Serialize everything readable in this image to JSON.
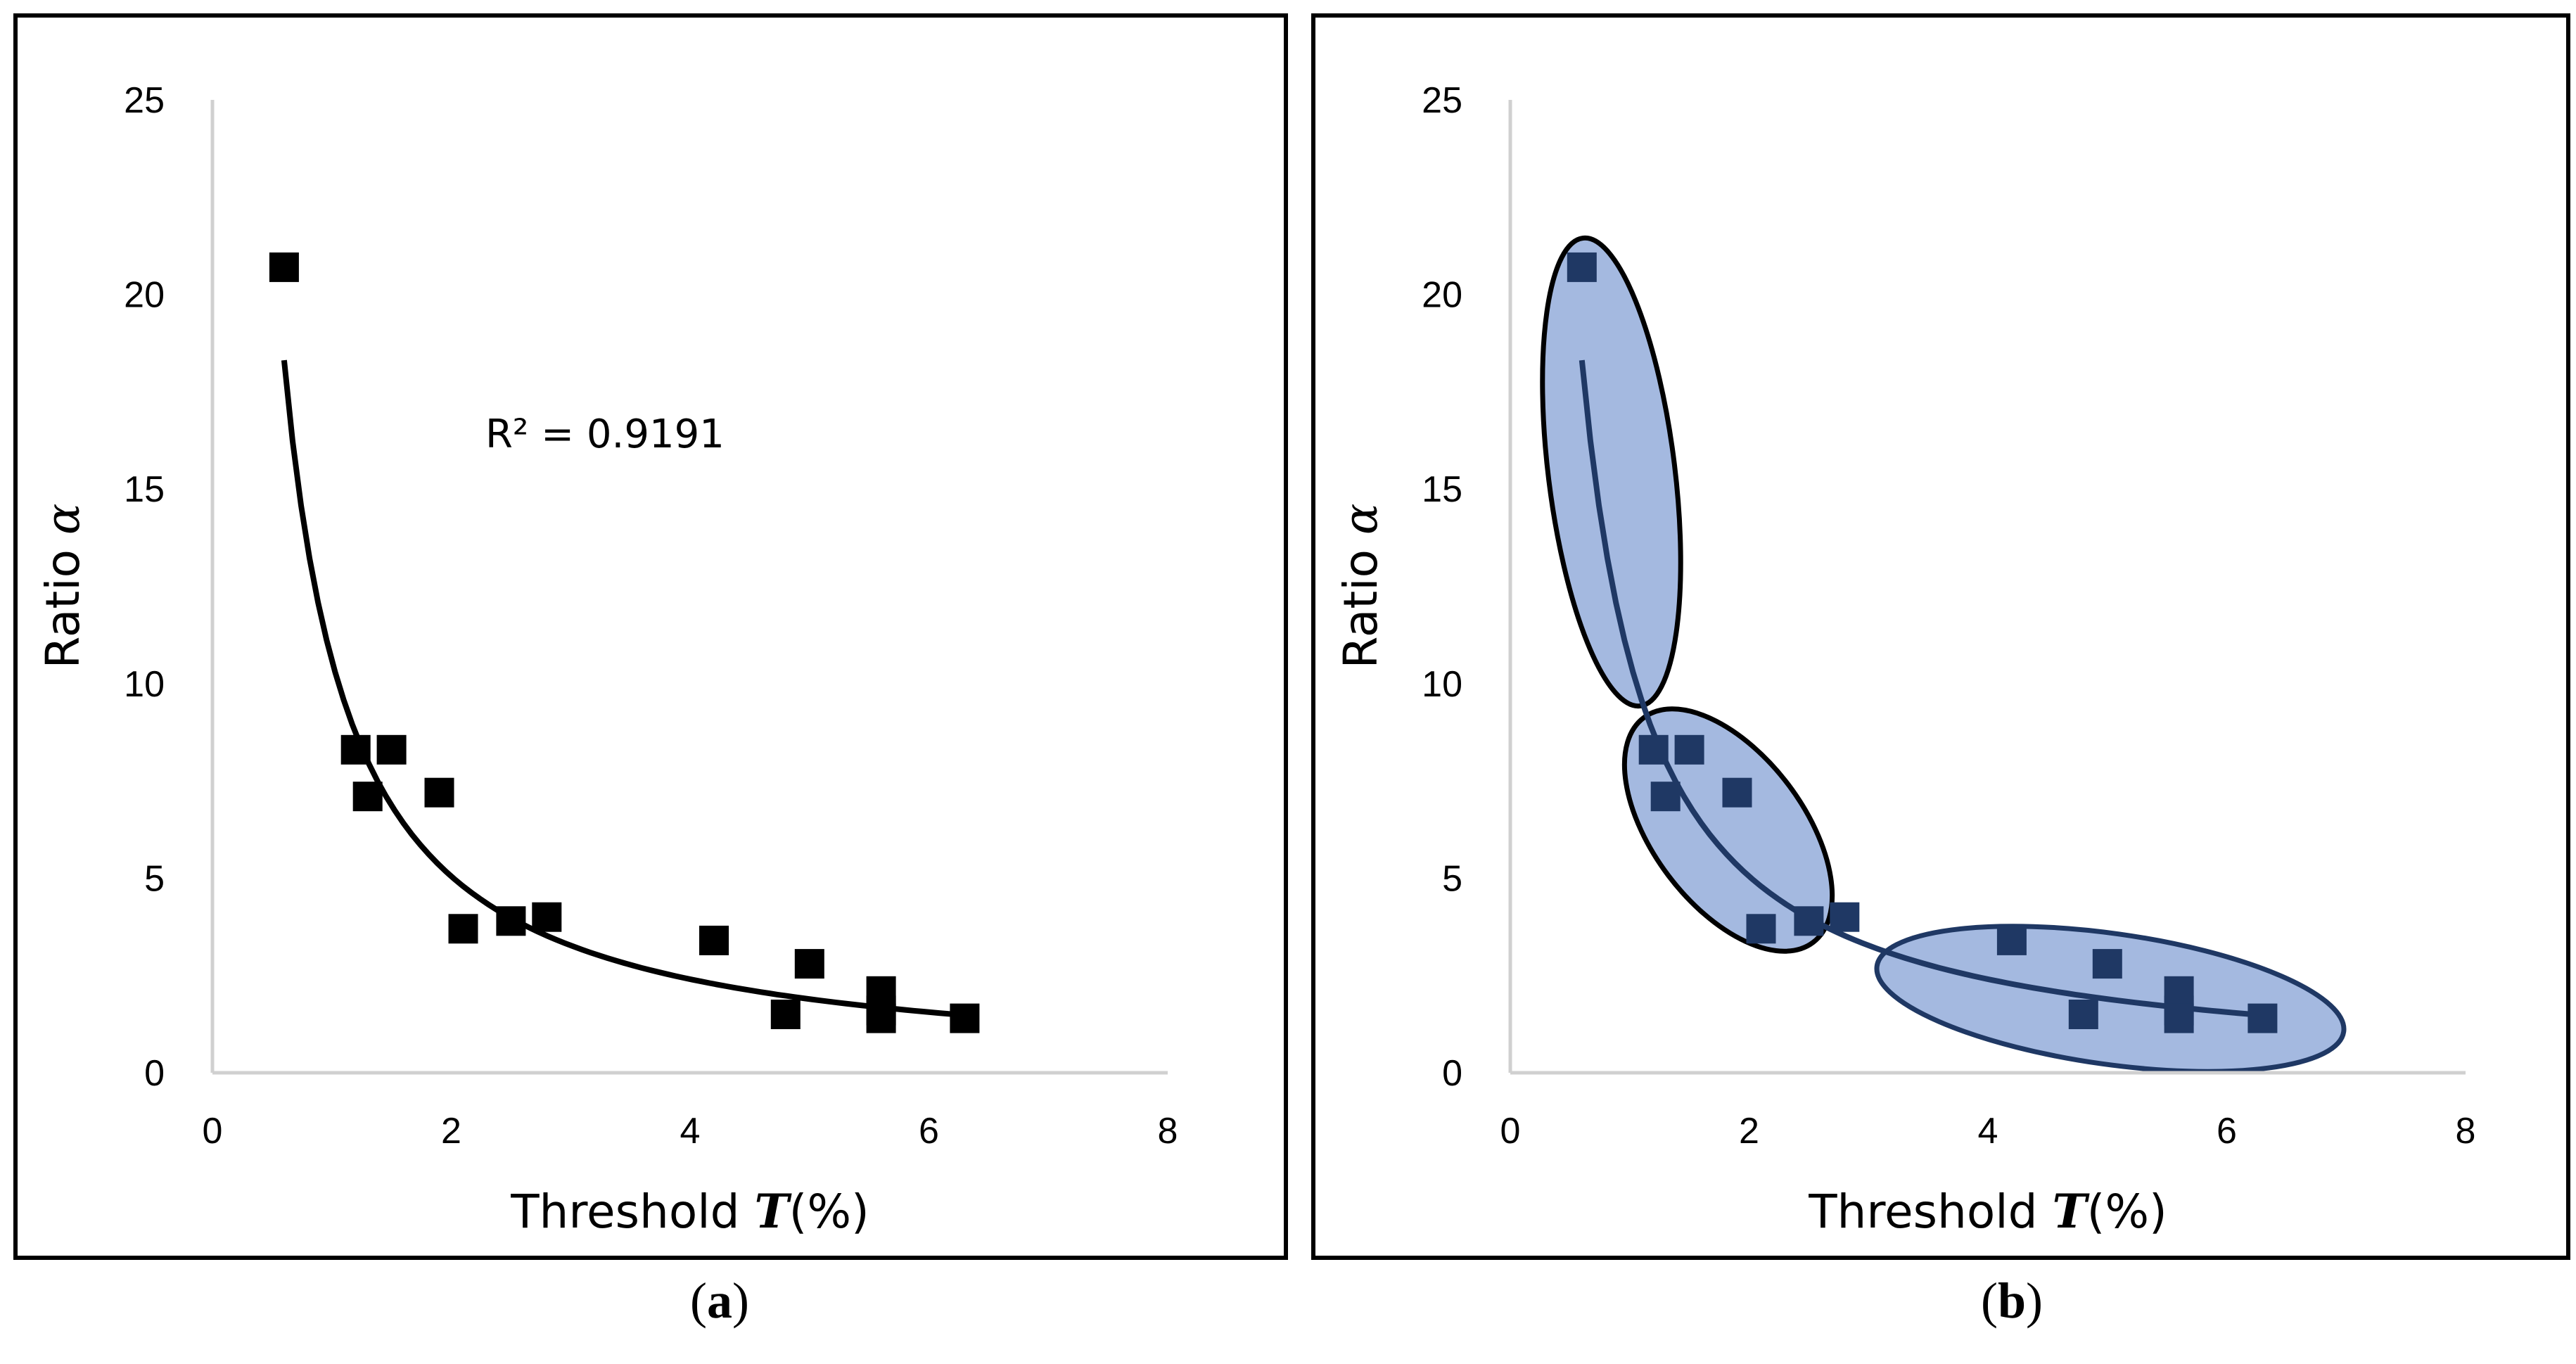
{
  "chart_data": [
    {
      "type": "scatter",
      "panel_label": "a",
      "xlabel": "Threshold T(%)",
      "ylabel": "Ratio α",
      "xlim": [
        0,
        8
      ],
      "ylim": [
        0,
        25
      ],
      "xticks": [
        0,
        2,
        4,
        6,
        8
      ],
      "yticks": [
        0,
        5,
        10,
        15,
        20,
        25
      ],
      "series": [
        {
          "name": "data",
          "x": [
            0.6,
            1.2,
            1.3,
            1.5,
            1.9,
            2.1,
            2.5,
            2.8,
            4.2,
            4.8,
            5.0,
            5.6,
            5.6,
            5.6,
            6.3
          ],
          "y": [
            20.7,
            8.3,
            7.1,
            8.3,
            7.2,
            3.7,
            3.9,
            4.0,
            3.4,
            1.5,
            2.8,
            2.1,
            1.6,
            1.4,
            1.4
          ]
        }
      ],
      "trendline": {
        "type": "power",
        "a": 10.6,
        "b": -1.07,
        "x_range": [
          0.6,
          6.3
        ]
      },
      "annotation": "R² = 0.9191",
      "marker_color": "#000000"
    },
    {
      "type": "scatter",
      "panel_label": "b",
      "xlabel": "Threshold T(%)",
      "ylabel": "Ratio α",
      "xlim": [
        0,
        8
      ],
      "ylim": [
        0,
        25
      ],
      "xticks": [
        0,
        2,
        4,
        6,
        8
      ],
      "yticks": [
        0,
        5,
        10,
        15,
        20,
        25
      ],
      "series": [
        {
          "name": "data",
          "x": [
            0.6,
            1.2,
            1.3,
            1.5,
            1.9,
            2.1,
            2.5,
            2.8,
            4.2,
            4.8,
            5.0,
            5.6,
            5.6,
            5.6,
            6.3
          ],
          "y": [
            20.7,
            8.3,
            7.1,
            8.3,
            7.2,
            3.7,
            3.9,
            4.0,
            3.4,
            1.5,
            2.8,
            2.1,
            1.6,
            1.4,
            1.4
          ]
        }
      ],
      "trendline": {
        "type": "power",
        "a": 10.6,
        "b": -1.07,
        "x_range": [
          0.6,
          6.3
        ]
      },
      "clusters": [
        {
          "name": "cluster-1",
          "center": [
            0.82,
            15.5
          ],
          "note": "ellipse around high-ratio point"
        },
        {
          "name": "cluster-2",
          "center": [
            1.9,
            6.2
          ],
          "note": "ellipse around mid points"
        },
        {
          "name": "cluster-3",
          "center": [
            5.0,
            2.5
          ],
          "note": "ellipse around low points"
        }
      ],
      "marker_color": "#1f3864",
      "cluster_fill": "#a4b9e0",
      "trend_color": "#1f3864"
    }
  ],
  "labels": {
    "xlabel_prefix": "Threshold ",
    "xlabel_var": "T",
    "xlabel_suffix": "(%)",
    "ylabel_prefix": "Ratio ",
    "ylabel_var": "α",
    "r2_text": "R² = 0.9191"
  },
  "captions": {
    "a": {
      "open": "(",
      "letter": "a",
      "close": ")"
    },
    "b": {
      "open": "(",
      "letter": "b",
      "close": ")"
    }
  }
}
